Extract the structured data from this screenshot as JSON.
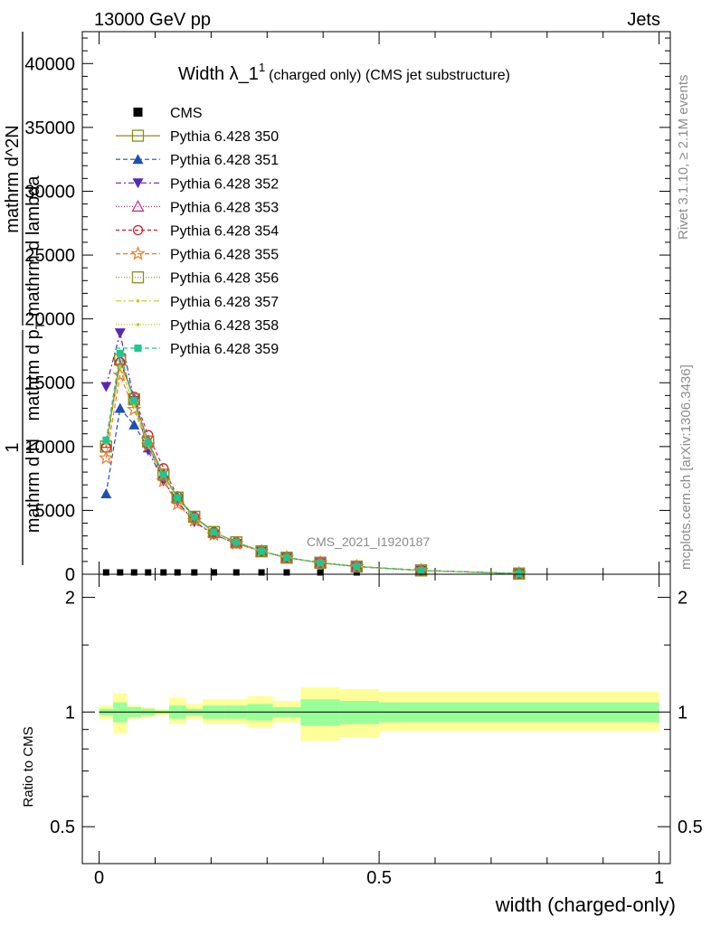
{
  "header": {
    "energy_label": "13000 GeV pp",
    "process_label": "Jets",
    "title_main": "Width λ_1",
    "title_sup": "1",
    "title_sub": "(charged only) (CMS jet substructure)",
    "rivet_label": "Rivet 3.1.10, ≥ 2.1M events",
    "mcplots_label": "mcplots.cern.ch [arXiv:1306.3436]",
    "analysis_label": "CMS_2021_I1920187"
  },
  "colors": {
    "cms": "#000000",
    "p350": "#8c8c1e",
    "p351": "#1e4fb4",
    "p352": "#5a28b4",
    "p353": "#c8287f",
    "p354": "#d21e28",
    "p355": "#f07828",
    "p356": "#8c8c1e",
    "p357": "#c8c81e",
    "p358": "#b4d21e",
    "p359": "#1ec88c",
    "band_inner": "#99ff99",
    "band_outer": "#ffff99"
  },
  "chart_data": [
    {
      "type": "line",
      "title": "Width λ_1^1 (charged only) (CMS jet substructure)",
      "ylabel_parts": [
        "1",
        "mathrm d N",
        "mathrm d p_T mathrm d lambda",
        "mathrm d^2N",
        "mathrm d p_T mathrm d lambda"
      ],
      "ylabel_fraction": {
        "numerator": "1",
        "denominator": "mathrm d N",
        "numerator2": "mathrm d^2N",
        "denominator2_pre": "mathrm d p",
        "denominator2_sub": "T",
        "denominator2_post": " mathrm d lambda"
      },
      "xlim": [
        -0.03,
        1.02
      ],
      "ylim": [
        0,
        42500
      ],
      "yticks": [
        0,
        5000,
        10000,
        15000,
        20000,
        25000,
        30000,
        35000,
        40000
      ],
      "ytick_labels": [
        "0",
        "5000",
        "10000",
        "15000",
        "20000",
        "25000",
        "30000",
        "35000",
        "40000"
      ],
      "x": [
        0.0125,
        0.0375,
        0.0625,
        0.0875,
        0.115,
        0.14,
        0.17,
        0.205,
        0.245,
        0.29,
        0.335,
        0.395,
        0.46,
        0.575,
        0.75
      ],
      "series": [
        {
          "name": "CMS",
          "values": [
            100,
            100,
            100,
            100,
            100,
            100,
            100,
            100,
            100,
            100,
            100,
            100,
            100,
            100,
            100
          ]
        },
        {
          "name": "Pythia 6.428 350",
          "values": [
            10000,
            16800,
            13700,
            10400,
            7800,
            6000,
            4500,
            3300,
            2500,
            1800,
            1300,
            900,
            600,
            300,
            50
          ]
        },
        {
          "name": "Pythia 6.428 351",
          "values": [
            6300,
            13000,
            11700,
            9900,
            7800,
            6000,
            4500,
            3300,
            2500,
            1800,
            1300,
            900,
            600,
            300,
            50
          ]
        },
        {
          "name": "Pythia 6.428 352",
          "values": [
            14700,
            18900,
            13600,
            9700,
            7300,
            5700,
            4100,
            3100,
            2400,
            1800,
            1300,
            900,
            600,
            300,
            50
          ]
        },
        {
          "name": "Pythia 6.428 353",
          "values": [
            10300,
            16800,
            13700,
            10400,
            7800,
            6000,
            4500,
            3300,
            2500,
            1800,
            1300,
            900,
            600,
            300,
            50
          ]
        },
        {
          "name": "Pythia 6.428 354",
          "values": [
            9900,
            16600,
            13900,
            10900,
            8300,
            6100,
            4500,
            3300,
            2500,
            1800,
            1300,
            900,
            600,
            300,
            50
          ]
        },
        {
          "name": "Pythia 6.428 355",
          "values": [
            9100,
            15600,
            12900,
            10100,
            7300,
            5500,
            4200,
            3100,
            2400,
            1800,
            1300,
            900,
            600,
            300,
            50
          ]
        },
        {
          "name": "Pythia 6.428 356",
          "values": [
            10000,
            16800,
            13700,
            10400,
            7800,
            6000,
            4500,
            3300,
            2500,
            1800,
            1300,
            900,
            600,
            300,
            50
          ]
        },
        {
          "name": "Pythia 6.428 357",
          "values": [
            10200,
            16300,
            13200,
            10100,
            7700,
            5900,
            4400,
            3300,
            2500,
            1800,
            1300,
            900,
            600,
            300,
            50
          ]
        },
        {
          "name": "Pythia 6.428 358",
          "values": [
            10300,
            16200,
            13300,
            10200,
            7700,
            5900,
            4400,
            3300,
            2500,
            1800,
            1300,
            900,
            600,
            300,
            50
          ]
        },
        {
          "name": "Pythia 6.428 359",
          "values": [
            10500,
            17300,
            13600,
            10300,
            7800,
            6000,
            4500,
            3300,
            2500,
            1800,
            1300,
            900,
            600,
            300,
            50
          ]
        }
      ],
      "legend_position": "top-left"
    },
    {
      "type": "area",
      "ylabel": "Ratio to CMS",
      "xlabel": "width (charged-only)",
      "xlim": [
        -0.03,
        1.02
      ],
      "ylim": [
        0.4,
        2.3
      ],
      "log_y": true,
      "yticks": [
        0.5,
        1,
        2
      ],
      "ytick_labels": [
        "0.5",
        "1",
        "2"
      ],
      "xticks": [
        0,
        0.5,
        1
      ],
      "xtick_labels": [
        "0",
        "0.5",
        "1"
      ],
      "bin_edges": [
        0,
        0.025,
        0.05,
        0.075,
        0.1,
        0.125,
        0.155,
        0.185,
        0.225,
        0.265,
        0.31,
        0.36,
        0.43,
        0.5,
        1.0
      ],
      "band_inner_low": [
        0.98,
        0.94,
        0.97,
        0.98,
        0.99,
        0.96,
        0.98,
        0.96,
        0.96,
        0.95,
        0.97,
        0.92,
        0.93,
        0.94
      ],
      "band_inner_high": [
        1.02,
        1.06,
        1.03,
        1.02,
        1.01,
        1.04,
        1.02,
        1.04,
        1.04,
        1.05,
        1.03,
        1.08,
        1.07,
        1.06
      ],
      "band_outer_low": [
        0.96,
        0.88,
        0.96,
        0.97,
        0.98,
        0.93,
        0.96,
        0.93,
        0.93,
        0.91,
        0.94,
        0.84,
        0.86,
        0.89
      ],
      "band_outer_high": [
        1.04,
        1.12,
        1.04,
        1.03,
        1.02,
        1.09,
        1.05,
        1.08,
        1.08,
        1.1,
        1.07,
        1.16,
        1.15,
        1.13
      ]
    }
  ]
}
